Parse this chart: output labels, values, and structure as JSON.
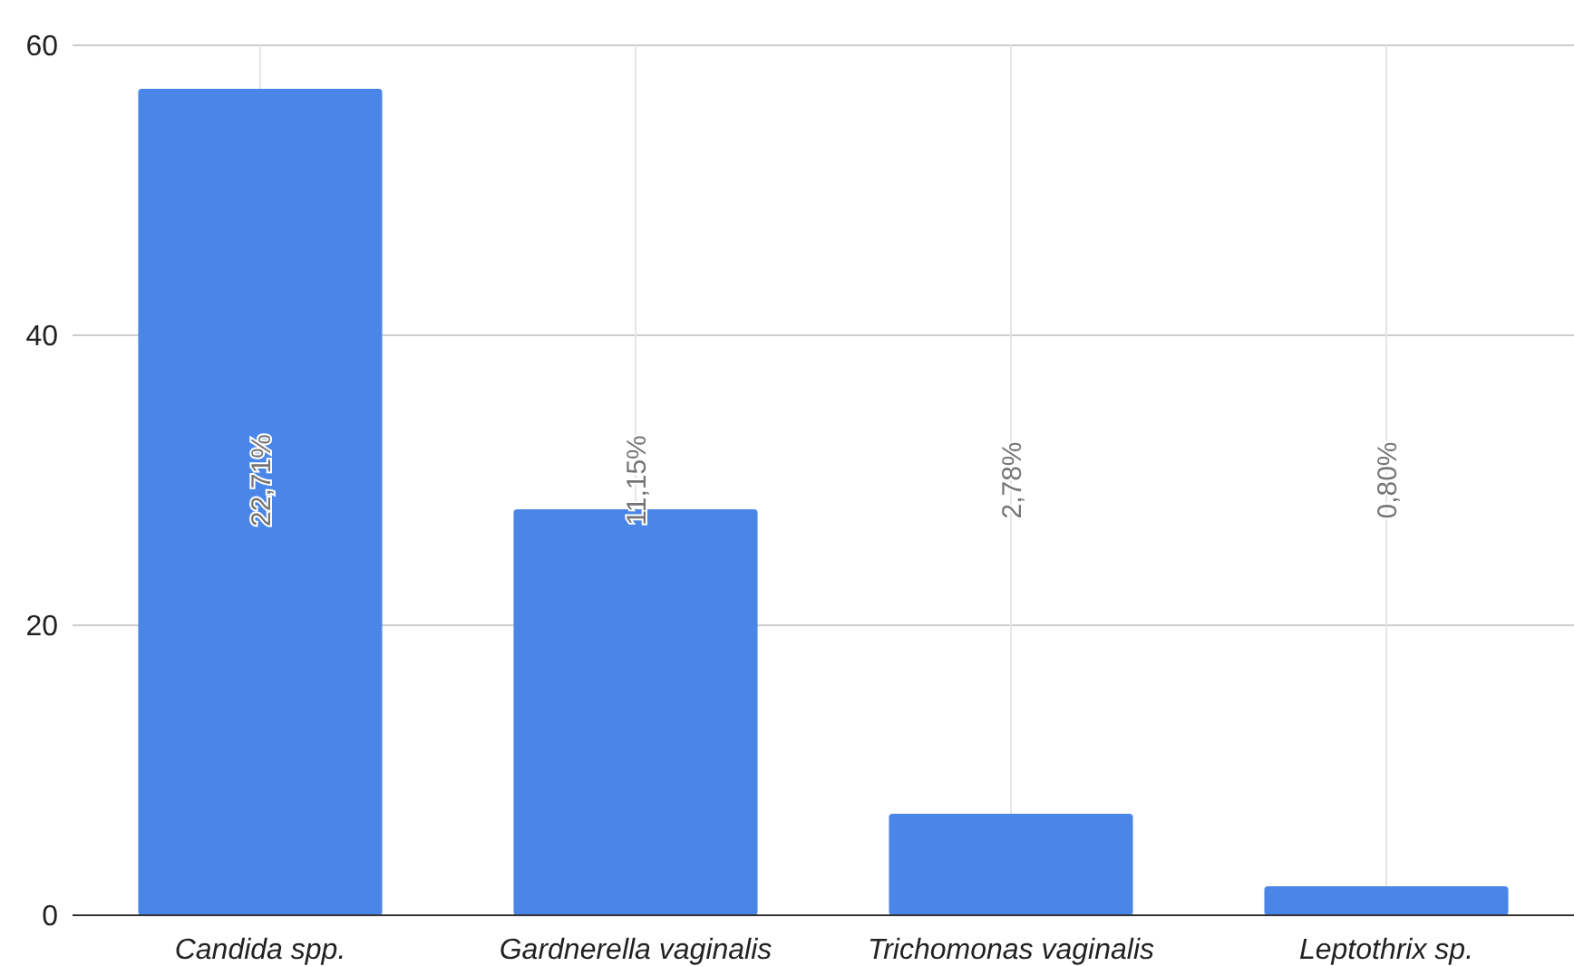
{
  "chart_data": {
    "type": "bar",
    "categories": [
      "Candida spp.",
      "Gardnerella vaginalis",
      "Trichomonas vaginalis",
      "Leptothrix sp."
    ],
    "values": [
      57,
      28,
      7,
      2
    ],
    "color": "#4a86e8",
    "annotations": [
      "22,71%",
      "11,15%",
      "2,78%",
      "0,80%"
    ],
    "ylim": [
      0,
      60
    ],
    "yticks": [
      0,
      20,
      40,
      60
    ],
    "grid": true
  }
}
